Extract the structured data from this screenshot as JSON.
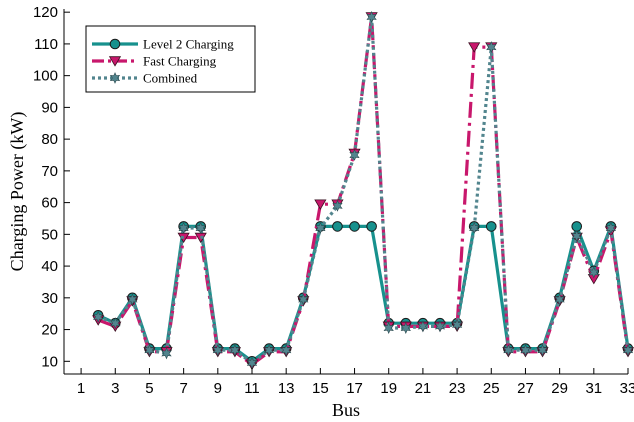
{
  "chart_data": {
    "type": "line",
    "xlabel": "Bus",
    "ylabel": "Charging Power (kW)",
    "xlim": [
      0,
      33
    ],
    "ylim": [
      6,
      121
    ],
    "xticks": [
      1,
      3,
      5,
      7,
      9,
      11,
      13,
      15,
      17,
      19,
      21,
      23,
      25,
      27,
      29,
      31,
      33
    ],
    "yticks": [
      10,
      20,
      30,
      40,
      50,
      60,
      70,
      80,
      90,
      100,
      110,
      120
    ],
    "x": [
      2,
      3,
      4,
      5,
      6,
      7,
      8,
      9,
      10,
      11,
      12,
      13,
      14,
      15,
      16,
      17,
      18,
      19,
      20,
      21,
      22,
      23,
      24,
      25,
      26,
      27,
      28,
      29,
      30,
      31,
      32,
      33
    ],
    "legend_position": "top-left",
    "series": [
      {
        "name": "Level 2 Charging",
        "color": "#17918d",
        "style": "solid",
        "marker": "circle",
        "values": [
          24.5,
          22,
          30,
          14,
          14,
          52.5,
          52.5,
          14,
          14,
          10,
          14,
          14,
          30,
          52.5,
          52.5,
          52.5,
          52.5,
          22,
          22,
          22,
          22,
          22,
          52.5,
          52.5,
          14,
          14,
          14,
          30,
          52.5,
          38.5,
          52.5,
          14
        ]
      },
      {
        "name": "Fast Charging",
        "color": "#c8176c",
        "style": "dashdot",
        "marker": "triangle-down",
        "values": [
          23,
          21,
          29,
          13,
          13,
          49,
          49,
          13,
          13,
          9,
          13,
          13,
          29,
          59.5,
          59.5,
          75.5,
          118.5,
          21,
          21,
          21,
          21,
          21,
          109,
          109,
          13,
          13,
          13,
          29,
          49,
          36,
          51,
          13
        ]
      },
      {
        "name": "Combined",
        "color": "#52858e",
        "style": "dotted",
        "marker": "star",
        "values": [
          24,
          22,
          29.5,
          13.5,
          12.5,
          52,
          52,
          13.5,
          13.5,
          9.5,
          13.5,
          13.5,
          29.5,
          52,
          59,
          75,
          118.5,
          20.5,
          20.5,
          21,
          21,
          21.5,
          52,
          109,
          13.5,
          13.5,
          13.5,
          29.5,
          49.5,
          38,
          52,
          13.5
        ]
      }
    ]
  }
}
